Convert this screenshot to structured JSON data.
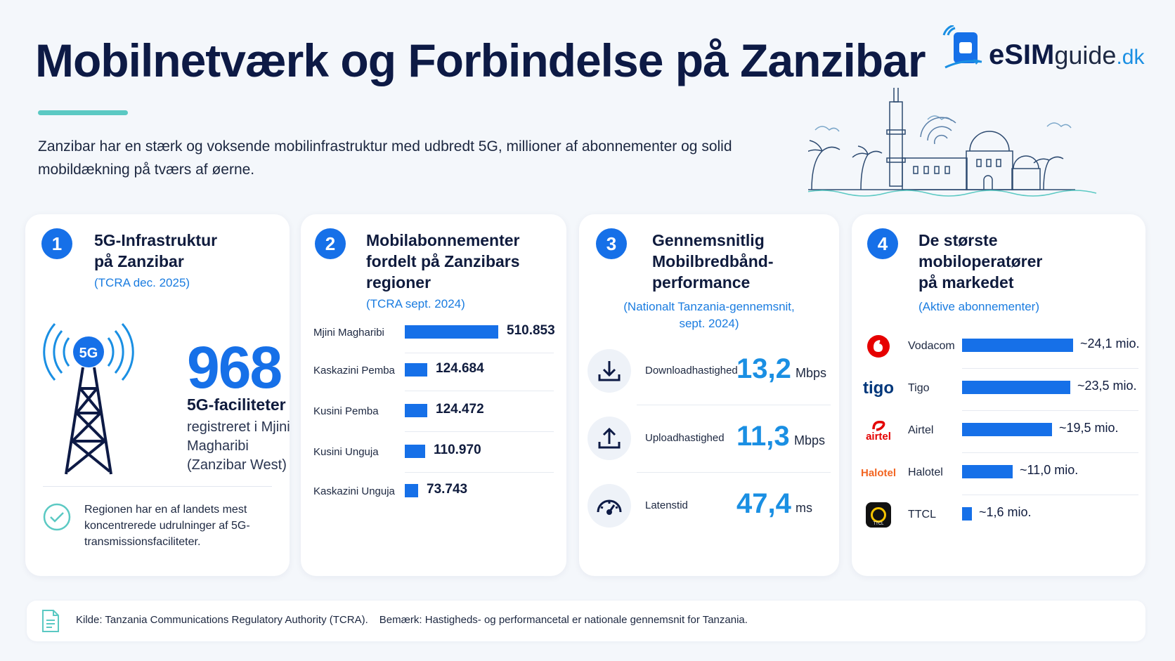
{
  "header": {
    "title": "Mobilnetværk og Forbindelse på Zanzibar",
    "intro": "Zanzibar har en stærk og voksende mobilinfrastruktur med udbredt 5G, millioner af abonnementer og solid mobildækning på tværs af øerne.",
    "logo": {
      "esim": "eSIM",
      "guide": "guide",
      "dk": ".dk"
    }
  },
  "colors": {
    "accent": "#1670e8",
    "accent_light": "#1a8fe3",
    "teal": "#5bc9c3",
    "title": "#0d1a45"
  },
  "card1": {
    "number": "1",
    "title_line1": "5G-Infrastruktur",
    "title_line2": "på Zanzibar",
    "source": "(TCRA dec. 2025)",
    "icon_label": "5G",
    "big_value": "968",
    "value_label": "5G-faciliteter",
    "value_desc": "registreret i Mjini Magharibi (Zanzibar West)",
    "note": "Regionen har en af landets mest koncentrerede udrulninger af 5G-transmissionsfaciliteter."
  },
  "card2": {
    "number": "2",
    "title_line1": "Mobilabonnementer",
    "title_line2": "fordelt på Zanzibars",
    "title_line3": "regioner",
    "source": "(TCRA sept. 2024)",
    "rows": [
      {
        "name": "Mjini Magharibi",
        "value_label": "510.853",
        "value": 510853
      },
      {
        "name": "Kaskazini Pemba",
        "value_label": "124.684",
        "value": 124684
      },
      {
        "name": "Kusini Pemba",
        "value_label": "124.472",
        "value": 124472
      },
      {
        "name": "Kusini Unguja",
        "value_label": "110.970",
        "value": 110970
      },
      {
        "name": "Kaskazini Unguja",
        "value_label": "73.743",
        "value": 73743
      }
    ]
  },
  "card3": {
    "number": "3",
    "title_line1": "Gennemsnitlig",
    "title_line2": "Mobilbredbånd-",
    "title_line3": "performance",
    "source_line1": "(Nationalt Tanzania-gennemsnit,",
    "source_line2": "sept. 2024)",
    "rows": [
      {
        "label": "Downloadhastighed",
        "value": "13,2",
        "unit": "Mbps",
        "icon": "download-icon"
      },
      {
        "label": "Uploadhastighed",
        "value": "11,3",
        "unit": "Mbps",
        "icon": "upload-icon"
      },
      {
        "label": "Latenstid",
        "value": "47,4",
        "unit": "ms",
        "icon": "speedometer-icon"
      }
    ]
  },
  "card4": {
    "number": "4",
    "title_line1": "De største",
    "title_line2": "mobiloperatører",
    "title_line3": "på markedet",
    "source": "(Aktive abonnementer)",
    "operators": [
      {
        "name": "Vodacom",
        "value_label": "~24,1 mio.",
        "value": 24.1,
        "logo_text": ""
      },
      {
        "name": "Tigo",
        "value_label": "~23,5 mio.",
        "value": 23.5,
        "logo_text": "tigo"
      },
      {
        "name": "Airtel",
        "value_label": "~19,5 mio.",
        "value": 19.5,
        "logo_text": "airtel"
      },
      {
        "name": "Halotel",
        "value_label": "~11,0 mio.",
        "value": 11.0,
        "logo_text": "Halotel"
      },
      {
        "name": "TTCL",
        "value_label": "~1,6 mio.",
        "value": 1.6,
        "logo_text": "TTCL"
      }
    ]
  },
  "footer": {
    "source": "Kilde: Tanzania Communications Regulatory Authority (TCRA).",
    "note": "Bemærk: Hastigheds- og performancetal er nationale gennemsnit for Tanzania."
  }
}
